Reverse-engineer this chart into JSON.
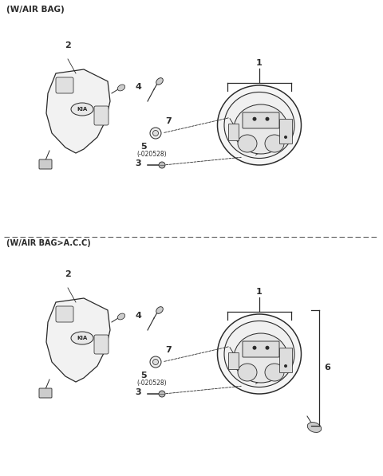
{
  "bg_color": "#ffffff",
  "line_color": "#2a2a2a",
  "title1": "(W/AIR BAG)",
  "title2": "(W/AIR BAG>A.C.C)",
  "fig_w": 4.8,
  "fig_h": 5.97,
  "dpi": 100
}
